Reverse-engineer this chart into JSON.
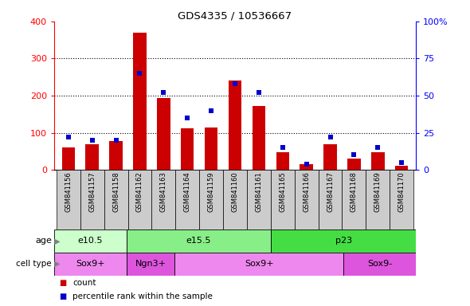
{
  "title": "GDS4335 / 10536667",
  "samples": [
    "GSM841156",
    "GSM841157",
    "GSM841158",
    "GSM841162",
    "GSM841163",
    "GSM841164",
    "GSM841159",
    "GSM841160",
    "GSM841161",
    "GSM841165",
    "GSM841166",
    "GSM841167",
    "GSM841168",
    "GSM841169",
    "GSM841170"
  ],
  "counts": [
    60,
    70,
    78,
    370,
    193,
    113,
    115,
    240,
    172,
    48,
    15,
    68,
    30,
    47,
    10
  ],
  "percentiles": [
    22,
    20,
    20,
    65,
    52,
    35,
    40,
    58,
    52,
    15,
    4,
    22,
    10,
    15,
    5
  ],
  "ylim_left": [
    0,
    400
  ],
  "ylim_right": [
    0,
    100
  ],
  "yticks_left": [
    0,
    100,
    200,
    300,
    400
  ],
  "yticks_right": [
    0,
    25,
    50,
    75,
    100
  ],
  "ytick_labels_right": [
    "0",
    "25",
    "50",
    "75",
    "100%"
  ],
  "bar_color": "#CC0000",
  "dot_color": "#0000CC",
  "age_groups": [
    {
      "label": "e10.5",
      "start": 0,
      "end": 3,
      "color": "#ccffcc"
    },
    {
      "label": "e15.5",
      "start": 3,
      "end": 9,
      "color": "#88ee88"
    },
    {
      "label": "p23",
      "start": 9,
      "end": 15,
      "color": "#44dd44"
    }
  ],
  "cell_type_groups": [
    {
      "label": "Sox9+",
      "start": 0,
      "end": 3,
      "color": "#ee88ee"
    },
    {
      "label": "Ngn3+",
      "start": 3,
      "end": 5,
      "color": "#dd55dd"
    },
    {
      "label": "Sox9+",
      "start": 5,
      "end": 12,
      "color": "#ee88ee"
    },
    {
      "label": "Sox9-",
      "start": 12,
      "end": 15,
      "color": "#dd55dd"
    }
  ],
  "tick_area_color": "#cccccc",
  "bg_color": "#ffffff"
}
